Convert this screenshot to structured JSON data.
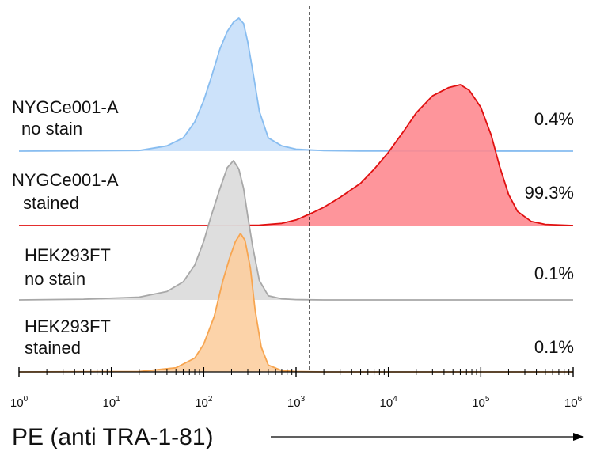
{
  "chart_data": {
    "type": "area",
    "title": "",
    "xlabel": "PE (anti TRA-1-81)",
    "ylabel": "",
    "xscale": "log",
    "xlim": [
      1,
      1000000
    ],
    "x_ticks": [
      "10^0",
      "10^1",
      "10^2",
      "10^3",
      "10^4",
      "10^5",
      "10^6"
    ],
    "gate_threshold": 1400,
    "gate_line_style": "dashed",
    "axis_color": "#000000",
    "series": [
      {
        "label_line1": "NYGCe001-A",
        "label_line2": "no stain",
        "percent": "0.4%",
        "color": "#88bdf0",
        "fill": "#cce2fa",
        "fill_opacity": 1,
        "points": [
          [
            1,
            0
          ],
          [
            20,
            0.005
          ],
          [
            40,
            0.04
          ],
          [
            60,
            0.1
          ],
          [
            80,
            0.22
          ],
          [
            100,
            0.38
          ],
          [
            120,
            0.55
          ],
          [
            150,
            0.77
          ],
          [
            180,
            0.9
          ],
          [
            210,
            0.97
          ],
          [
            240,
            1
          ],
          [
            270,
            0.96
          ],
          [
            300,
            0.82
          ],
          [
            350,
            0.55
          ],
          [
            400,
            0.3
          ],
          [
            500,
            0.1
          ],
          [
            700,
            0.04
          ],
          [
            1000,
            0.015
          ],
          [
            2000,
            0.004
          ],
          [
            5000,
            0.001
          ],
          [
            1000000,
            0
          ]
        ]
      },
      {
        "label_line1": "NYGCe001-A",
        "label_line2": "stained",
        "percent": "99.3%",
        "color": "#e01010",
        "fill": "#fe8a90",
        "fill_opacity": 0.9,
        "points": [
          [
            1,
            0
          ],
          [
            200,
            0
          ],
          [
            400,
            0.003
          ],
          [
            700,
            0.015
          ],
          [
            1000,
            0.04
          ],
          [
            1500,
            0.09
          ],
          [
            2000,
            0.13
          ],
          [
            3000,
            0.2
          ],
          [
            5000,
            0.3
          ],
          [
            7000,
            0.4
          ],
          [
            10000,
            0.52
          ],
          [
            15000,
            0.68
          ],
          [
            20000,
            0.8
          ],
          [
            30000,
            0.92
          ],
          [
            45000,
            0.98
          ],
          [
            60000,
            1
          ],
          [
            75000,
            0.96
          ],
          [
            100000,
            0.84
          ],
          [
            130000,
            0.64
          ],
          [
            160000,
            0.42
          ],
          [
            200000,
            0.22
          ],
          [
            250000,
            0.1
          ],
          [
            350000,
            0.03
          ],
          [
            500000,
            0.008
          ],
          [
            1000000,
            0
          ]
        ]
      },
      {
        "label_line1": "HEK293FT",
        "label_line2": "no stain",
        "percent": "0.1%",
        "color": "#a8a8a8",
        "fill": "#dcdcdc",
        "fill_opacity": 0.95,
        "points": [
          [
            1,
            0
          ],
          [
            5,
            0.005
          ],
          [
            20,
            0.02
          ],
          [
            40,
            0.06
          ],
          [
            60,
            0.13
          ],
          [
            80,
            0.25
          ],
          [
            100,
            0.42
          ],
          [
            120,
            0.6
          ],
          [
            150,
            0.8
          ],
          [
            180,
            0.95
          ],
          [
            210,
            1
          ],
          [
            240,
            0.94
          ],
          [
            270,
            0.8
          ],
          [
            300,
            0.6
          ],
          [
            340,
            0.38
          ],
          [
            400,
            0.14
          ],
          [
            500,
            0.03
          ],
          [
            700,
            0.008
          ],
          [
            1000,
            0.002
          ],
          [
            2000,
            0
          ],
          [
            1000000,
            0
          ]
        ]
      },
      {
        "label_line1": "HEK293FT",
        "label_line2": "stained",
        "percent": "0.1%",
        "color": "#f7a550",
        "fill": "#fccea0",
        "fill_opacity": 0.9,
        "points": [
          [
            1,
            0
          ],
          [
            20,
            0.003
          ],
          [
            50,
            0.03
          ],
          [
            80,
            0.1
          ],
          [
            100,
            0.2
          ],
          [
            130,
            0.4
          ],
          [
            160,
            0.65
          ],
          [
            190,
            0.82
          ],
          [
            220,
            0.94
          ],
          [
            250,
            1
          ],
          [
            280,
            0.95
          ],
          [
            320,
            0.75
          ],
          [
            360,
            0.45
          ],
          [
            420,
            0.18
          ],
          [
            500,
            0.05
          ],
          [
            700,
            0.01
          ],
          [
            1000,
            0.002
          ],
          [
            2000,
            0
          ],
          [
            1000000,
            0
          ]
        ]
      }
    ]
  }
}
